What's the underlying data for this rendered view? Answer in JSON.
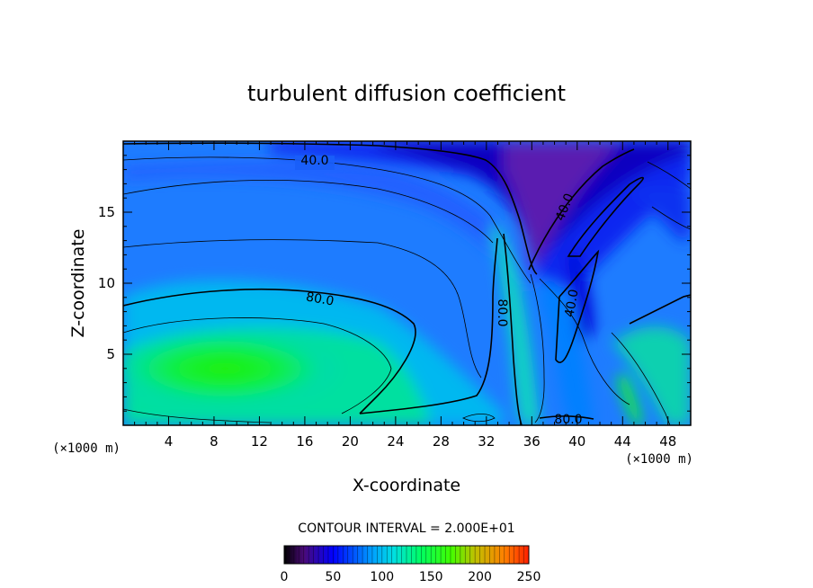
{
  "chart_data": {
    "type": "heatmap",
    "title": "turbulent diffusion coefficient",
    "xlabel": "X-coordinate",
    "ylabel": "Z-coordinate",
    "x_unit_left": "(×1000 m)",
    "x_unit_right": "(×1000 m)",
    "xlim": [
      0,
      50
    ],
    "ylim": [
      0,
      20
    ],
    "x_ticks": [
      4,
      8,
      12,
      16,
      20,
      24,
      28,
      32,
      36,
      40,
      44,
      48
    ],
    "y_ticks": [
      5,
      10,
      15
    ],
    "contour_interval_text": "CONTOUR INTERVAL = 2.000E+01",
    "contour_labels": [
      {
        "text": "40.0",
        "x": 16.5,
        "z": 18.6,
        "rotate": 0
      },
      {
        "text": "40.0",
        "x": 39.5,
        "z": 15.4,
        "rotate": -68
      },
      {
        "text": "40.0",
        "x": 39.8,
        "z": 8.3,
        "rotate": -80
      },
      {
        "text": "80.0",
        "x": 17.2,
        "z": 8.6,
        "rotate": 10
      },
      {
        "text": "80.0",
        "x": 33.5,
        "z": 7.9,
        "rotate": 90
      },
      {
        "text": "80.0",
        "x": 39.3,
        "z": 0.4,
        "rotate": 0
      }
    ],
    "colorbar": {
      "min": 0,
      "max": 250,
      "ticks": [
        0,
        50,
        100,
        150,
        200,
        250
      ]
    },
    "grid": false,
    "legend": "colorbar-bottom"
  },
  "colors": {
    "low": "#4a0a78",
    "mid_low": "#0000ff",
    "mid": "#00b0ff",
    "high": "#00ff00",
    "very_high": "#ff0000"
  }
}
